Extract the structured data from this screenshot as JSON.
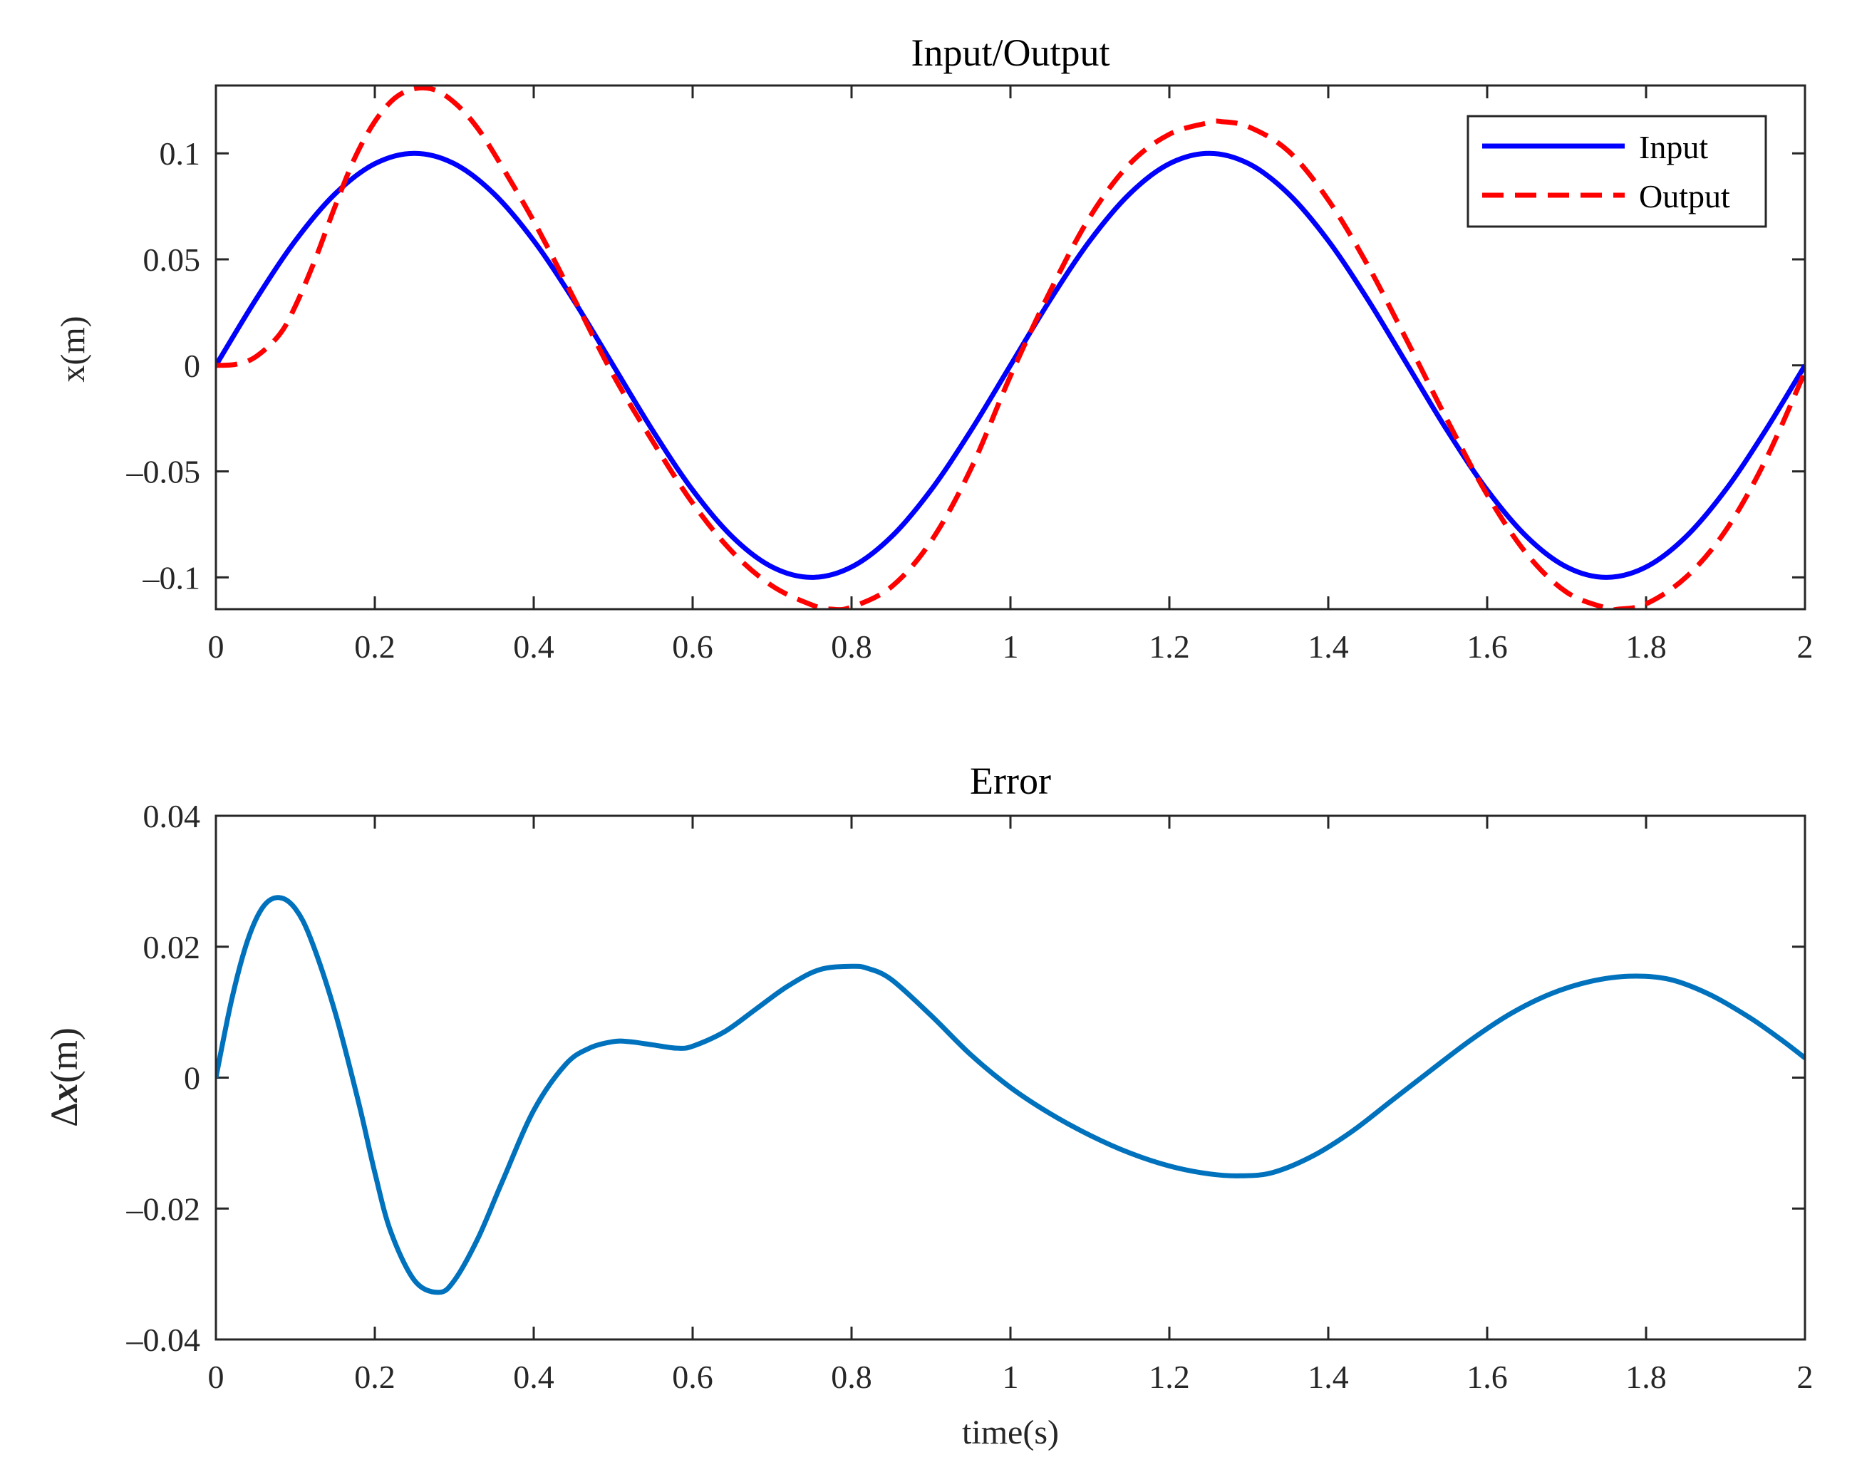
{
  "chart_data": [
    {
      "type": "line",
      "id": "top",
      "title": "Input/Output",
      "xlabel": "",
      "ylabel": "x(m)",
      "xlim": [
        0,
        2
      ],
      "ylim": [
        -0.115,
        0.132
      ],
      "xticks": [
        0,
        0.2,
        0.4,
        0.6,
        0.8,
        1,
        1.2,
        1.4,
        1.6,
        1.8,
        2
      ],
      "xtick_labels": [
        "0",
        "0.2",
        "0.4",
        "0.6",
        "0.8",
        "1",
        "1.2",
        "1.4",
        "1.6",
        "1.8",
        "2"
      ],
      "yticks": [
        -0.1,
        -0.05,
        0,
        0.05,
        0.1
      ],
      "ytick_labels": [
        "–0.1",
        "–0.05",
        "0",
        "0.05",
        "0.1"
      ],
      "legend_position": "top-right",
      "series": [
        {
          "name": "Input",
          "color": "#0000ff",
          "style": "solid",
          "x": [
            0,
            0.05,
            0.1,
            0.15,
            0.2,
            0.25,
            0.3,
            0.35,
            0.4,
            0.45,
            0.5,
            0.55,
            0.6,
            0.65,
            0.7,
            0.75,
            0.8,
            0.85,
            0.9,
            0.95,
            1.0,
            1.05,
            1.1,
            1.15,
            1.2,
            1.25,
            1.3,
            1.35,
            1.4,
            1.45,
            1.5,
            1.55,
            1.6,
            1.65,
            1.7,
            1.75,
            1.8,
            1.85,
            1.9,
            1.95,
            2.0
          ],
          "values": [
            0,
            0.0309,
            0.0588,
            0.0809,
            0.0951,
            0.1,
            0.0951,
            0.0809,
            0.0588,
            0.0309,
            0,
            -0.0309,
            -0.0588,
            -0.0809,
            -0.0951,
            -0.1,
            -0.0951,
            -0.0809,
            -0.0588,
            -0.0309,
            0,
            0.0309,
            0.0588,
            0.0809,
            0.0951,
            0.1,
            0.0951,
            0.0809,
            0.0588,
            0.0309,
            0,
            -0.0309,
            -0.0588,
            -0.0809,
            -0.0951,
            -0.1,
            -0.0951,
            -0.0809,
            -0.0588,
            -0.0309,
            0
          ]
        },
        {
          "name": "Output",
          "color": "#ff0000",
          "style": "dashed",
          "x": [
            0,
            0.025,
            0.05,
            0.08,
            0.1,
            0.125,
            0.15,
            0.175,
            0.2,
            0.225,
            0.25,
            0.275,
            0.3,
            0.325,
            0.35,
            0.4,
            0.45,
            0.5,
            0.55,
            0.6,
            0.65,
            0.7,
            0.75,
            0.775,
            0.8,
            0.85,
            0.9,
            0.95,
            1.0,
            1.05,
            1.1,
            1.15,
            1.2,
            1.25,
            1.265,
            1.3,
            1.35,
            1.4,
            1.45,
            1.5,
            1.55,
            1.6,
            1.65,
            1.7,
            1.75,
            1.765,
            1.8,
            1.85,
            1.9,
            1.95,
            2.0
          ],
          "values": [
            0,
            0.0005,
            0.004,
            0.0145,
            0.028,
            0.05,
            0.075,
            0.098,
            0.115,
            0.126,
            0.1305,
            0.13,
            0.124,
            0.114,
            0.1,
            0.068,
            0.032,
            -0.0045,
            -0.036,
            -0.065,
            -0.088,
            -0.104,
            -0.113,
            -0.115,
            -0.114,
            -0.1045,
            -0.083,
            -0.049,
            -0.005,
            0.035,
            0.07,
            0.095,
            0.109,
            0.1145,
            0.115,
            0.1125,
            0.101,
            0.078,
            0.047,
            0.011,
            -0.026,
            -0.061,
            -0.089,
            -0.107,
            -0.1145,
            -0.115,
            -0.1125,
            -0.1,
            -0.078,
            -0.045,
            -0.003
          ]
        }
      ]
    },
    {
      "type": "line",
      "id": "bottom",
      "title": "Error",
      "xlabel": "time(s)",
      "ylabel": "Δx(m)",
      "ylabel_parts": [
        "Δ",
        "x",
        "(m)"
      ],
      "xlim": [
        0,
        2
      ],
      "ylim": [
        -0.04,
        0.04
      ],
      "xticks": [
        0,
        0.2,
        0.4,
        0.6,
        0.8,
        1,
        1.2,
        1.4,
        1.6,
        1.8,
        2
      ],
      "xtick_labels": [
        "0",
        "0.2",
        "0.4",
        "0.6",
        "0.8",
        "1",
        "1.2",
        "1.4",
        "1.6",
        "1.8",
        "2"
      ],
      "yticks": [
        -0.04,
        -0.02,
        0,
        0.02,
        0.04
      ],
      "ytick_labels": [
        "–0.04",
        "–0.02",
        "0",
        "0.02",
        "0.04"
      ],
      "series": [
        {
          "name": "Error",
          "color": "#0072bd",
          "style": "solid",
          "x": [
            0,
            0.02,
            0.04,
            0.06,
            0.08,
            0.1,
            0.12,
            0.15,
            0.18,
            0.2,
            0.22,
            0.25,
            0.28,
            0.3,
            0.33,
            0.36,
            0.4,
            0.44,
            0.47,
            0.5,
            0.52,
            0.55,
            0.58,
            0.6,
            0.64,
            0.68,
            0.72,
            0.76,
            0.8,
            0.82,
            0.85,
            0.9,
            0.95,
            1.0,
            1.05,
            1.1,
            1.15,
            1.2,
            1.25,
            1.29,
            1.33,
            1.38,
            1.43,
            1.48,
            1.53,
            1.58,
            1.63,
            1.68,
            1.73,
            1.78,
            1.83,
            1.88,
            1.93,
            1.97,
            2.0
          ],
          "values": [
            0,
            0.012,
            0.021,
            0.0262,
            0.0275,
            0.0258,
            0.021,
            0.01,
            -0.004,
            -0.0145,
            -0.0235,
            -0.031,
            -0.0328,
            -0.031,
            -0.0245,
            -0.016,
            -0.005,
            0.002,
            0.0045,
            0.0055,
            0.0055,
            0.005,
            0.0045,
            0.0048,
            0.007,
            0.0105,
            0.014,
            0.0165,
            0.017,
            0.0167,
            0.015,
            0.0095,
            0.0035,
            -0.0015,
            -0.0055,
            -0.0088,
            -0.0115,
            -0.0135,
            -0.0147,
            -0.015,
            -0.0145,
            -0.012,
            -0.0082,
            -0.0035,
            0.0012,
            0.0058,
            0.0098,
            0.0128,
            0.0147,
            0.0155,
            0.015,
            0.0127,
            0.0092,
            0.0058,
            0.003
          ]
        }
      ]
    }
  ]
}
